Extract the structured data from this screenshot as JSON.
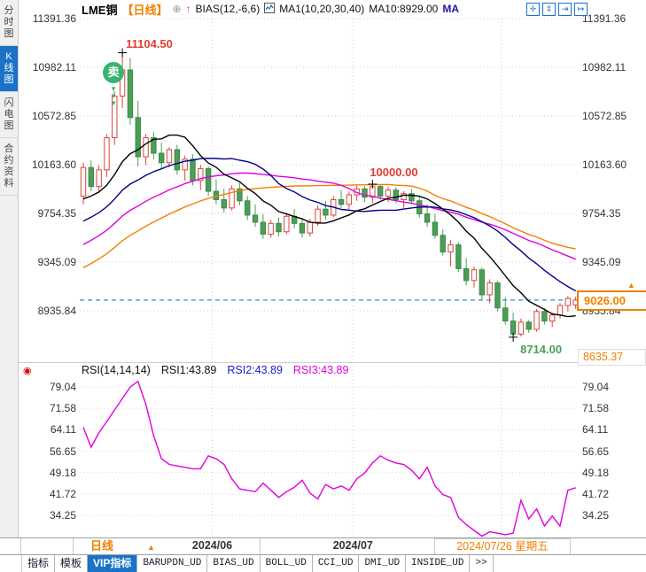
{
  "header": {
    "symbol": "LME铜",
    "period_tag": "【日线】",
    "link_icon": "⊕",
    "signal_arrow": "↑",
    "indicator1": "BIAS(12,-6,6)",
    "indicator2": "MA1(10,20,30,40)",
    "ma_value": "MA10:8929.00",
    "ma_suffix": "MA",
    "toolbar": [
      {
        "name": "crosshair",
        "glyph": "✛"
      },
      {
        "name": "zoom-vertical",
        "glyph": "⇕"
      },
      {
        "name": "zoom-horizontal",
        "glyph": "⇥"
      },
      {
        "name": "pan-right",
        "glyph": "↦"
      }
    ]
  },
  "sidebar": {
    "items": [
      {
        "label": "分时图",
        "active": false
      },
      {
        "label": "K线图",
        "active": true
      },
      {
        "label": "闪电图",
        "active": false
      },
      {
        "label": "合约资料",
        "active": false
      }
    ]
  },
  "rsi_header": {
    "icon": "◉",
    "name": "RSI(14,14,14)",
    "rsi1": "RSI1:43.89",
    "rsi2": "RSI2:43.89",
    "rsi3": "RSI3:43.89"
  },
  "axis": {
    "main_labels": [
      "11391.36",
      "10982.11",
      "10572.85",
      "10163.60",
      "9754.35",
      "9345.09",
      "8935.84"
    ],
    "main_min_label": "8635.37",
    "rsi_labels": [
      "79.04",
      "71.58",
      "64.11",
      "56.65",
      "49.18",
      "41.72",
      "34.25"
    ],
    "months": [
      "2024/06",
      "2024/07"
    ],
    "cursor_date": "2024/07/26 星期五"
  },
  "markers": {
    "high": "11104.50",
    "mid_high": "10000.00",
    "low": "8714.00",
    "last_price": "9026.00",
    "axis_arrow": "▲",
    "sell_badge": "卖",
    "sell_arrows": "▼"
  },
  "period_selector": {
    "label": "日线",
    "arrow": "▲"
  },
  "bottom_tabs": [
    {
      "label": "指标",
      "active": false,
      "mono": false
    },
    {
      "label": "模板",
      "active": false,
      "mono": false
    },
    {
      "label": "VIP指标",
      "active": true,
      "mono": false
    },
    {
      "label": "BARUPDN_UD",
      "active": false,
      "mono": true
    },
    {
      "label": "BIAS_UD",
      "active": false,
      "mono": true
    },
    {
      "label": "BOLL_UD",
      "active": false,
      "mono": true
    },
    {
      "label": "CCI_UD",
      "active": false,
      "mono": true
    },
    {
      "label": "DMI_UD",
      "active": false,
      "mono": true
    },
    {
      "label": "INSIDE_UD",
      "active": false,
      "mono": true
    },
    {
      "label": "&gt;&gt;",
      "active": false,
      "mono": true
    }
  ],
  "colors": {
    "up": "#d9453c",
    "down": "#4a9e55",
    "down_stroke": "#3c8a48",
    "ma10": "#000000",
    "ma20": "#00008b",
    "ma30": "#e000e0",
    "ma40": "#f08000",
    "rsi_line": "#e000e0",
    "dashed_line": "#2f88e0",
    "grid": "#dccaca",
    "grid_rsi": "#d8d8d8",
    "accent_orange": "#f08000",
    "accent_blue": "#1a73c8",
    "sell_badge": "#3cb371"
  },
  "chart_data": {
    "type": "candlestick",
    "title": "LME铜 日线 K线图 with MA(10,20,30,40) and RSI(14,14,14)",
    "main_panel": {
      "y_gridline_values": [
        11391.36,
        10982.11,
        10572.85,
        10163.6,
        9754.35,
        9345.09,
        8935.84
      ],
      "y_axis_min": 8635.37,
      "candles_ohlc": [
        [
          9900,
          10180,
          9830,
          10140
        ],
        [
          10140,
          10200,
          9940,
          9980
        ],
        [
          9980,
          10160,
          9930,
          10120
        ],
        [
          10120,
          10420,
          10060,
          10390
        ],
        [
          10390,
          10780,
          10330,
          10740
        ],
        [
          10740,
          11104.5,
          10640,
          10960
        ],
        [
          10960,
          11060,
          10500,
          10560
        ],
        [
          10560,
          10700,
          10150,
          10230
        ],
        [
          10230,
          10420,
          10160,
          10390
        ],
        [
          10390,
          10440,
          10210,
          10260
        ],
        [
          10260,
          10350,
          10130,
          10180
        ],
        [
          10180,
          10310,
          10140,
          10290
        ],
        [
          10290,
          10330,
          10080,
          10120
        ],
        [
          10120,
          10240,
          10030,
          10210
        ],
        [
          10210,
          10250,
          9990,
          10030
        ],
        [
          10030,
          10160,
          9950,
          10130
        ],
        [
          10130,
          10150,
          9900,
          9940
        ],
        [
          9940,
          10040,
          9830,
          9870
        ],
        [
          9870,
          9960,
          9760,
          9800
        ],
        [
          9800,
          9990,
          9780,
          9960
        ],
        [
          9960,
          10010,
          9820,
          9860
        ],
        [
          9860,
          9900,
          9700,
          9740
        ],
        [
          9740,
          9830,
          9640,
          9680
        ],
        [
          9680,
          9750,
          9540,
          9580
        ],
        [
          9580,
          9700,
          9550,
          9670
        ],
        [
          9670,
          9720,
          9560,
          9600
        ],
        [
          9600,
          9760,
          9580,
          9730
        ],
        [
          9730,
          9790,
          9630,
          9670
        ],
        [
          9670,
          9700,
          9550,
          9590
        ],
        [
          9590,
          9710,
          9560,
          9680
        ],
        [
          9680,
          9820,
          9650,
          9790
        ],
        [
          9790,
          9860,
          9700,
          9740
        ],
        [
          9740,
          9900,
          9720,
          9870
        ],
        [
          9870,
          9950,
          9800,
          9830
        ],
        [
          9830,
          9940,
          9790,
          9910
        ],
        [
          9910,
          9990,
          9860,
          9960
        ],
        [
          9960,
          9985,
          9850,
          9890
        ],
        [
          9890,
          10000,
          9840,
          9980
        ],
        [
          9980,
          9995,
          9870,
          9900
        ],
        [
          9900,
          9980,
          9850,
          9950
        ],
        [
          9950,
          9975,
          9840,
          9870
        ],
        [
          9870,
          9940,
          9800,
          9920
        ],
        [
          9920,
          9960,
          9830,
          9860
        ],
        [
          9860,
          9900,
          9720,
          9750
        ],
        [
          9750,
          9830,
          9640,
          9680
        ],
        [
          9680,
          9750,
          9540,
          9570
        ],
        [
          9570,
          9620,
          9400,
          9430
        ],
        [
          9430,
          9530,
          9310,
          9490
        ],
        [
          9490,
          9510,
          9260,
          9290
        ],
        [
          9290,
          9380,
          9150,
          9190
        ],
        [
          9190,
          9310,
          9130,
          9280
        ],
        [
          9280,
          9300,
          9030,
          9070
        ],
        [
          9070,
          9200,
          9000,
          9170
        ],
        [
          9170,
          9190,
          8930,
          8960
        ],
        [
          8960,
          9050,
          8820,
          8850
        ],
        [
          8850,
          8920,
          8714,
          8740
        ],
        [
          8740,
          8870,
          8720,
          8840
        ],
        [
          8840,
          8860,
          8750,
          8780
        ],
        [
          8780,
          8950,
          8760,
          8930
        ],
        [
          8930,
          8960,
          8820,
          8850
        ],
        [
          8850,
          8920,
          8800,
          8900
        ],
        [
          8900,
          9000,
          8870,
          8980
        ],
        [
          8980,
          9060,
          8930,
          9040
        ],
        [
          8985,
          9055,
          8950,
          9026
        ]
      ],
      "ma_periods": [
        10,
        20,
        30,
        40
      ],
      "ma_seed_closes": [
        8500,
        8540,
        8580,
        8620,
        8660,
        8700,
        8730,
        8760,
        8800,
        8840,
        8880,
        8920,
        8960,
        9000,
        9040,
        9080,
        9120,
        9160,
        9200,
        9240,
        9280,
        9320,
        9360,
        9400,
        9440,
        9480,
        9520,
        9560,
        9600,
        9650,
        9700,
        9740,
        9780,
        9820,
        9850,
        9870,
        9890,
        9900,
        9890,
        9880
      ],
      "last_close": 9026.0,
      "high_marker": {
        "index": 5,
        "price": 11104.5
      },
      "mid_marker": {
        "index": 37,
        "price": 10000.0
      },
      "low_marker": {
        "index": 55,
        "price": 8714.0
      },
      "sell_signal_index": 5,
      "month_gridline_indices": [
        16.5,
        34.5,
        53.5
      ]
    },
    "rsi_panel": {
      "y_gridline_values": [
        79.04,
        71.58,
        64.11,
        56.65,
        49.18,
        41.72,
        34.25
      ],
      "values": [
        65,
        58,
        63,
        67,
        71,
        75,
        79,
        81,
        73,
        62,
        54,
        52,
        51.5,
        51,
        50.5,
        50.5,
        55,
        54,
        52,
        47,
        43.5,
        43,
        42.5,
        45.5,
        43,
        40.5,
        42.5,
        44,
        46.5,
        42,
        40,
        45,
        43.5,
        44.5,
        43,
        47,
        49,
        52.5,
        55,
        53.5,
        52.5,
        52,
        50,
        47,
        51,
        44.5,
        41.5,
        40.5,
        33.5,
        31,
        29,
        27,
        28.5,
        28,
        27.5,
        28,
        39.5,
        33,
        36.5,
        30.5,
        34,
        30.5,
        43,
        43.89
      ]
    }
  }
}
